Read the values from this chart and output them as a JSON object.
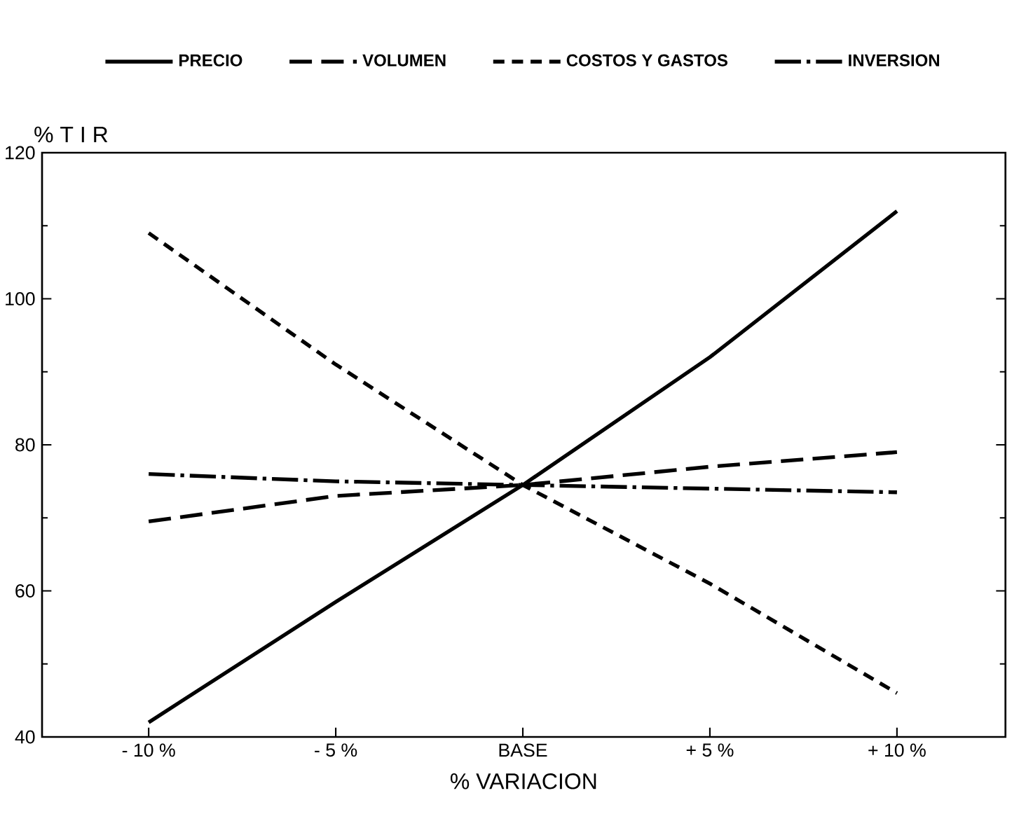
{
  "chart_data": {
    "type": "line",
    "xlabel": "% VARIACION",
    "ylabel": "% T I R",
    "categories": [
      "- 10 %",
      "- 5 %",
      "BASE",
      "+ 5 %",
      "+ 10 %"
    ],
    "ylim": [
      40,
      120
    ],
    "yticks": [
      40,
      60,
      80,
      100,
      120
    ],
    "legend": "top",
    "grid": false,
    "series": [
      {
        "name": "PRECIO",
        "color": "#000000",
        "line_style": "solid",
        "values": [
          42,
          58.5,
          74.5,
          92,
          112
        ]
      },
      {
        "name": "VOLUMEN",
        "color": "#000000",
        "line_style": "long dashed",
        "values": [
          69.5,
          73,
          74.5,
          77,
          79
        ]
      },
      {
        "name": "COSTOS Y GASTOS",
        "color": "#000000",
        "line_style": "dashed",
        "values": [
          109,
          91,
          74.5,
          61,
          46
        ]
      },
      {
        "name": "INVERSION",
        "color": "#000000",
        "line_style": "dashdot",
        "values": [
          76,
          75,
          74.5,
          74,
          73.5
        ]
      }
    ]
  }
}
